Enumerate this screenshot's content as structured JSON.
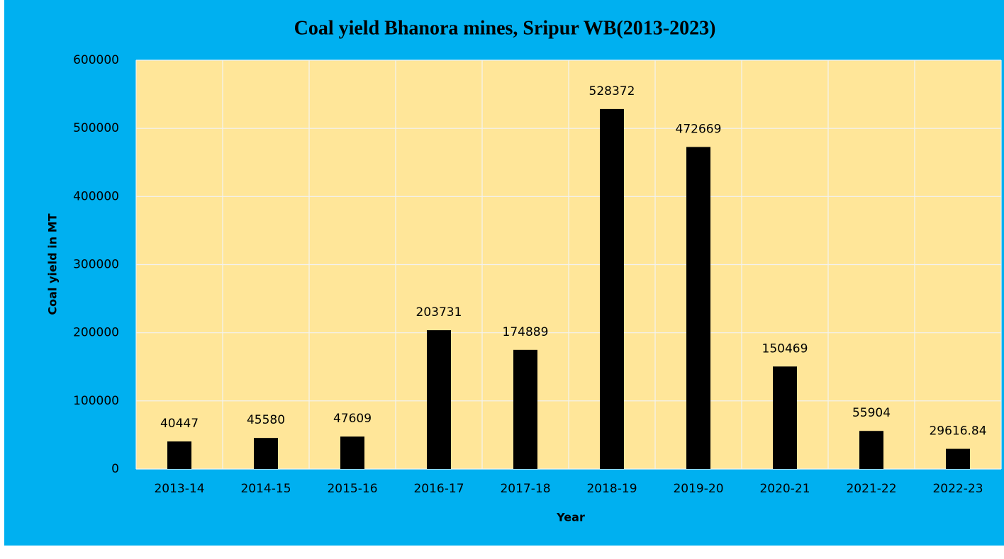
{
  "chart_data": {
    "type": "bar",
    "title": "Coal yield Bhanora mines, Sripur WB(2013-2023)",
    "x_label": "Year",
    "y_label": "Coal yield in MT",
    "categories": [
      "2013-14",
      "2014-15",
      "2015-16",
      "2016-17",
      "2017-18",
      "2018-19",
      "2019-20",
      "2020-21",
      "2021-22",
      "2022-23"
    ],
    "values": [
      40447,
      45580,
      47609,
      203731,
      174889,
      528372,
      472669,
      150469,
      55904,
      29616.84
    ],
    "color": "#000000",
    "ylim": [
      0,
      600000
    ],
    "yticks": [
      0,
      100000,
      200000,
      300000,
      400000,
      500000,
      600000
    ],
    "grid": true
  }
}
